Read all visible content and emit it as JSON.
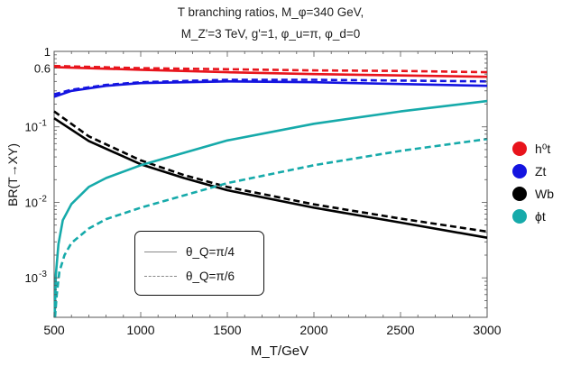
{
  "chart_data": {
    "type": "line",
    "title_line1": "T branching ratios, M_φ=340 GeV,",
    "title_line2": "M_Z'=3 TeV, g'=1, φ_u=π, φ_d=0",
    "xlabel": "M_T/GeV",
    "ylabel": "BR(T→XY)",
    "xlim": [
      500,
      3000
    ],
    "ylim": [
      0.0003,
      1
    ],
    "yscale": "log",
    "x_ticks": [
      500,
      1000,
      1500,
      2000,
      2500,
      3000
    ],
    "y_tick_labels": [
      {
        "value": 1,
        "label": "1"
      },
      {
        "value": 0.6,
        "label": "0.6"
      },
      {
        "value": 0.1,
        "label": "10",
        "exp": "-1"
      },
      {
        "value": 0.01,
        "label": "10",
        "exp": "-2"
      },
      {
        "value": 0.001,
        "label": "10",
        "exp": "-3"
      }
    ],
    "legend": [
      {
        "label": "h⁰t",
        "color": "#e8141c"
      },
      {
        "label": "Zt",
        "color": "#1414e0"
      },
      {
        "label": "Wb",
        "color": "#000000"
      },
      {
        "label": "ϕt",
        "color": "#16aaaa"
      }
    ],
    "line_styles": [
      {
        "label": "θ_Q=π/4",
        "dash": "solid"
      },
      {
        "label": "θ_Q=π/6",
        "dash": "dashed"
      }
    ],
    "series": [
      {
        "channel": "h⁰t",
        "style": "θ_Q=π/4",
        "color": "#e8141c",
        "dash": "solid",
        "x": [
          500,
          1000,
          1500,
          2000,
          2500,
          3000
        ],
        "y": [
          0.62,
          0.57,
          0.53,
          0.5,
          0.48,
          0.46
        ]
      },
      {
        "channel": "h⁰t",
        "style": "θ_Q=π/6",
        "color": "#e8141c",
        "dash": "dashed",
        "x": [
          500,
          1000,
          1500,
          2000,
          2500,
          3000
        ],
        "y": [
          0.64,
          0.6,
          0.58,
          0.56,
          0.55,
          0.53
        ]
      },
      {
        "channel": "Zt",
        "style": "θ_Q=π/4",
        "color": "#1414e0",
        "dash": "solid",
        "x": [
          500,
          600,
          800,
          1000,
          1500,
          2000,
          2500,
          3000
        ],
        "y": [
          0.25,
          0.3,
          0.35,
          0.38,
          0.4,
          0.39,
          0.37,
          0.35
        ]
      },
      {
        "channel": "Zt",
        "style": "θ_Q=π/6",
        "color": "#1414e0",
        "dash": "dashed",
        "x": [
          500,
          600,
          800,
          1000,
          1500,
          2000,
          2500,
          3000
        ],
        "y": [
          0.27,
          0.31,
          0.36,
          0.39,
          0.42,
          0.42,
          0.41,
          0.4
        ]
      },
      {
        "channel": "Wb",
        "style": "θ_Q=π/4",
        "color": "#000000",
        "dash": "solid",
        "x": [
          500,
          700,
          1000,
          1250,
          1500,
          2000,
          2500,
          3000
        ],
        "y": [
          0.13,
          0.065,
          0.032,
          0.021,
          0.0145,
          0.0085,
          0.0054,
          0.0034
        ]
      },
      {
        "channel": "Wb",
        "style": "θ_Q=π/6",
        "color": "#000000",
        "dash": "dashed",
        "x": [
          500,
          700,
          1000,
          1250,
          1500,
          2000,
          2500,
          3000
        ],
        "y": [
          0.16,
          0.075,
          0.036,
          0.023,
          0.016,
          0.0094,
          0.0061,
          0.0041
        ]
      },
      {
        "channel": "ϕt",
        "style": "θ_Q=π/4",
        "color": "#16aaaa",
        "dash": "solid",
        "x": [
          503,
          510,
          525,
          550,
          600,
          700,
          800,
          1000,
          1500,
          2000,
          2500,
          3000
        ],
        "y": [
          0.0003,
          0.0011,
          0.0028,
          0.0058,
          0.0095,
          0.016,
          0.021,
          0.031,
          0.066,
          0.11,
          0.16,
          0.22
        ]
      },
      {
        "channel": "ϕt",
        "style": "θ_Q=π/6",
        "color": "#16aaaa",
        "dash": "dashed",
        "x": [
          505,
          515,
          530,
          560,
          600,
          700,
          800,
          1000,
          1500,
          2000,
          2500,
          3000
        ],
        "y": [
          0.0003,
          0.0006,
          0.0012,
          0.002,
          0.0029,
          0.0045,
          0.006,
          0.0085,
          0.018,
          0.031,
          0.048,
          0.069
        ]
      }
    ]
  }
}
